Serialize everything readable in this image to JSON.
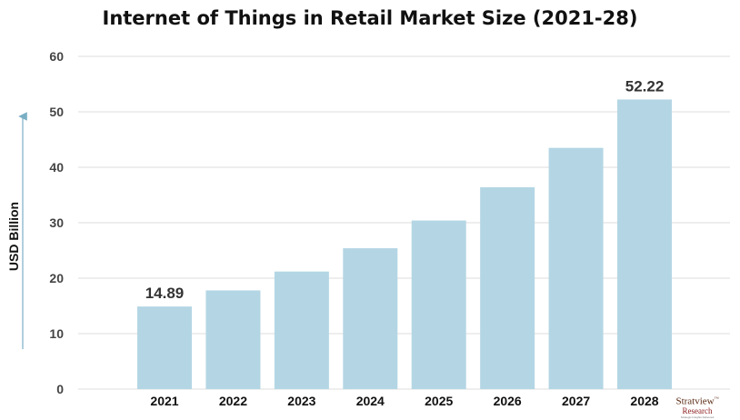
{
  "chart_data": {
    "type": "bar",
    "title": "Internet of Things in Retail Market Size (2021-28)",
    "xlabel": "",
    "ylabel": "USD Billion",
    "categories": [
      "2021",
      "2022",
      "2023",
      "2024",
      "2025",
      "2026",
      "2027",
      "2028"
    ],
    "values": [
      14.89,
      17.8,
      21.2,
      25.4,
      30.4,
      36.4,
      43.5,
      52.22
    ],
    "data_labels": {
      "2021": "14.89",
      "2028": "52.22"
    },
    "ylim": [
      0,
      60
    ],
    "yticks": [
      "0",
      "10",
      "20",
      "30",
      "40",
      "50",
      "60"
    ],
    "grid": true,
    "bar_color": "#b4d6e4"
  },
  "branding": {
    "logo_text": "Stratview",
    "logo_subtext": "Research",
    "logo_tagline": "Strategic Insights Delivered",
    "trademark": "™"
  }
}
